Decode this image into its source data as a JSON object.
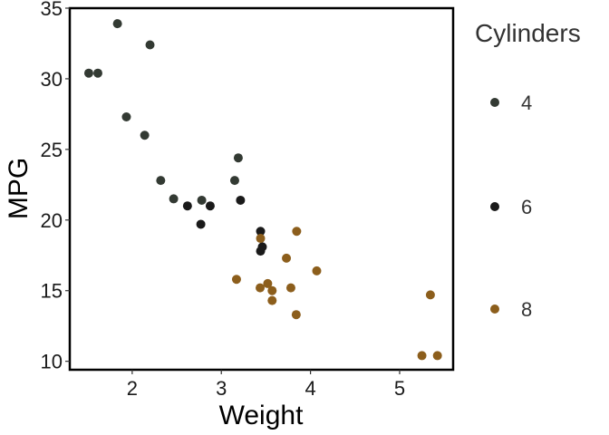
{
  "chart_data": {
    "type": "scatter",
    "xlabel": "Weight",
    "ylabel": "MPG",
    "xlim": [
      1.3,
      5.6
    ],
    "ylim": [
      9.4,
      35.0
    ],
    "xticks": [
      2,
      3,
      4,
      5
    ],
    "yticks": [
      10,
      15,
      20,
      25,
      30,
      35
    ],
    "grid": false,
    "legend": {
      "title": "Cylinders",
      "placement": "right",
      "entries": [
        {
          "label": "4",
          "color": "#333a33"
        },
        {
          "label": "6",
          "color": "#1a1a1a"
        },
        {
          "label": "8",
          "color": "#8c5e1c"
        }
      ]
    },
    "series": [
      {
        "name": "4",
        "color": "#333a33",
        "points": [
          [
            1.513,
            30.4
          ],
          [
            1.615,
            30.4
          ],
          [
            1.835,
            33.9
          ],
          [
            2.2,
            32.4
          ],
          [
            1.935,
            27.3
          ],
          [
            2.14,
            26.0
          ],
          [
            2.32,
            22.8
          ],
          [
            2.465,
            21.5
          ],
          [
            2.78,
            21.4
          ],
          [
            3.15,
            22.8
          ],
          [
            3.19,
            24.4
          ]
        ]
      },
      {
        "name": "6",
        "color": "#1a1a1a",
        "points": [
          [
            2.62,
            21.0
          ],
          [
            2.875,
            21.0
          ],
          [
            2.77,
            19.7
          ],
          [
            3.215,
            21.4
          ],
          [
            3.44,
            19.2
          ],
          [
            3.44,
            17.8
          ],
          [
            3.46,
            18.1
          ]
        ]
      },
      {
        "name": "8",
        "color": "#8c5e1c",
        "points": [
          [
            3.17,
            15.8
          ],
          [
            3.44,
            18.7
          ],
          [
            3.435,
            15.2
          ],
          [
            3.52,
            15.5
          ],
          [
            3.57,
            15.0
          ],
          [
            3.57,
            14.3
          ],
          [
            3.73,
            17.3
          ],
          [
            3.78,
            15.2
          ],
          [
            3.84,
            13.3
          ],
          [
            3.845,
            19.2
          ],
          [
            4.07,
            16.4
          ],
          [
            5.25,
            10.4
          ],
          [
            5.345,
            14.7
          ],
          [
            5.424,
            10.4
          ]
        ]
      }
    ]
  }
}
